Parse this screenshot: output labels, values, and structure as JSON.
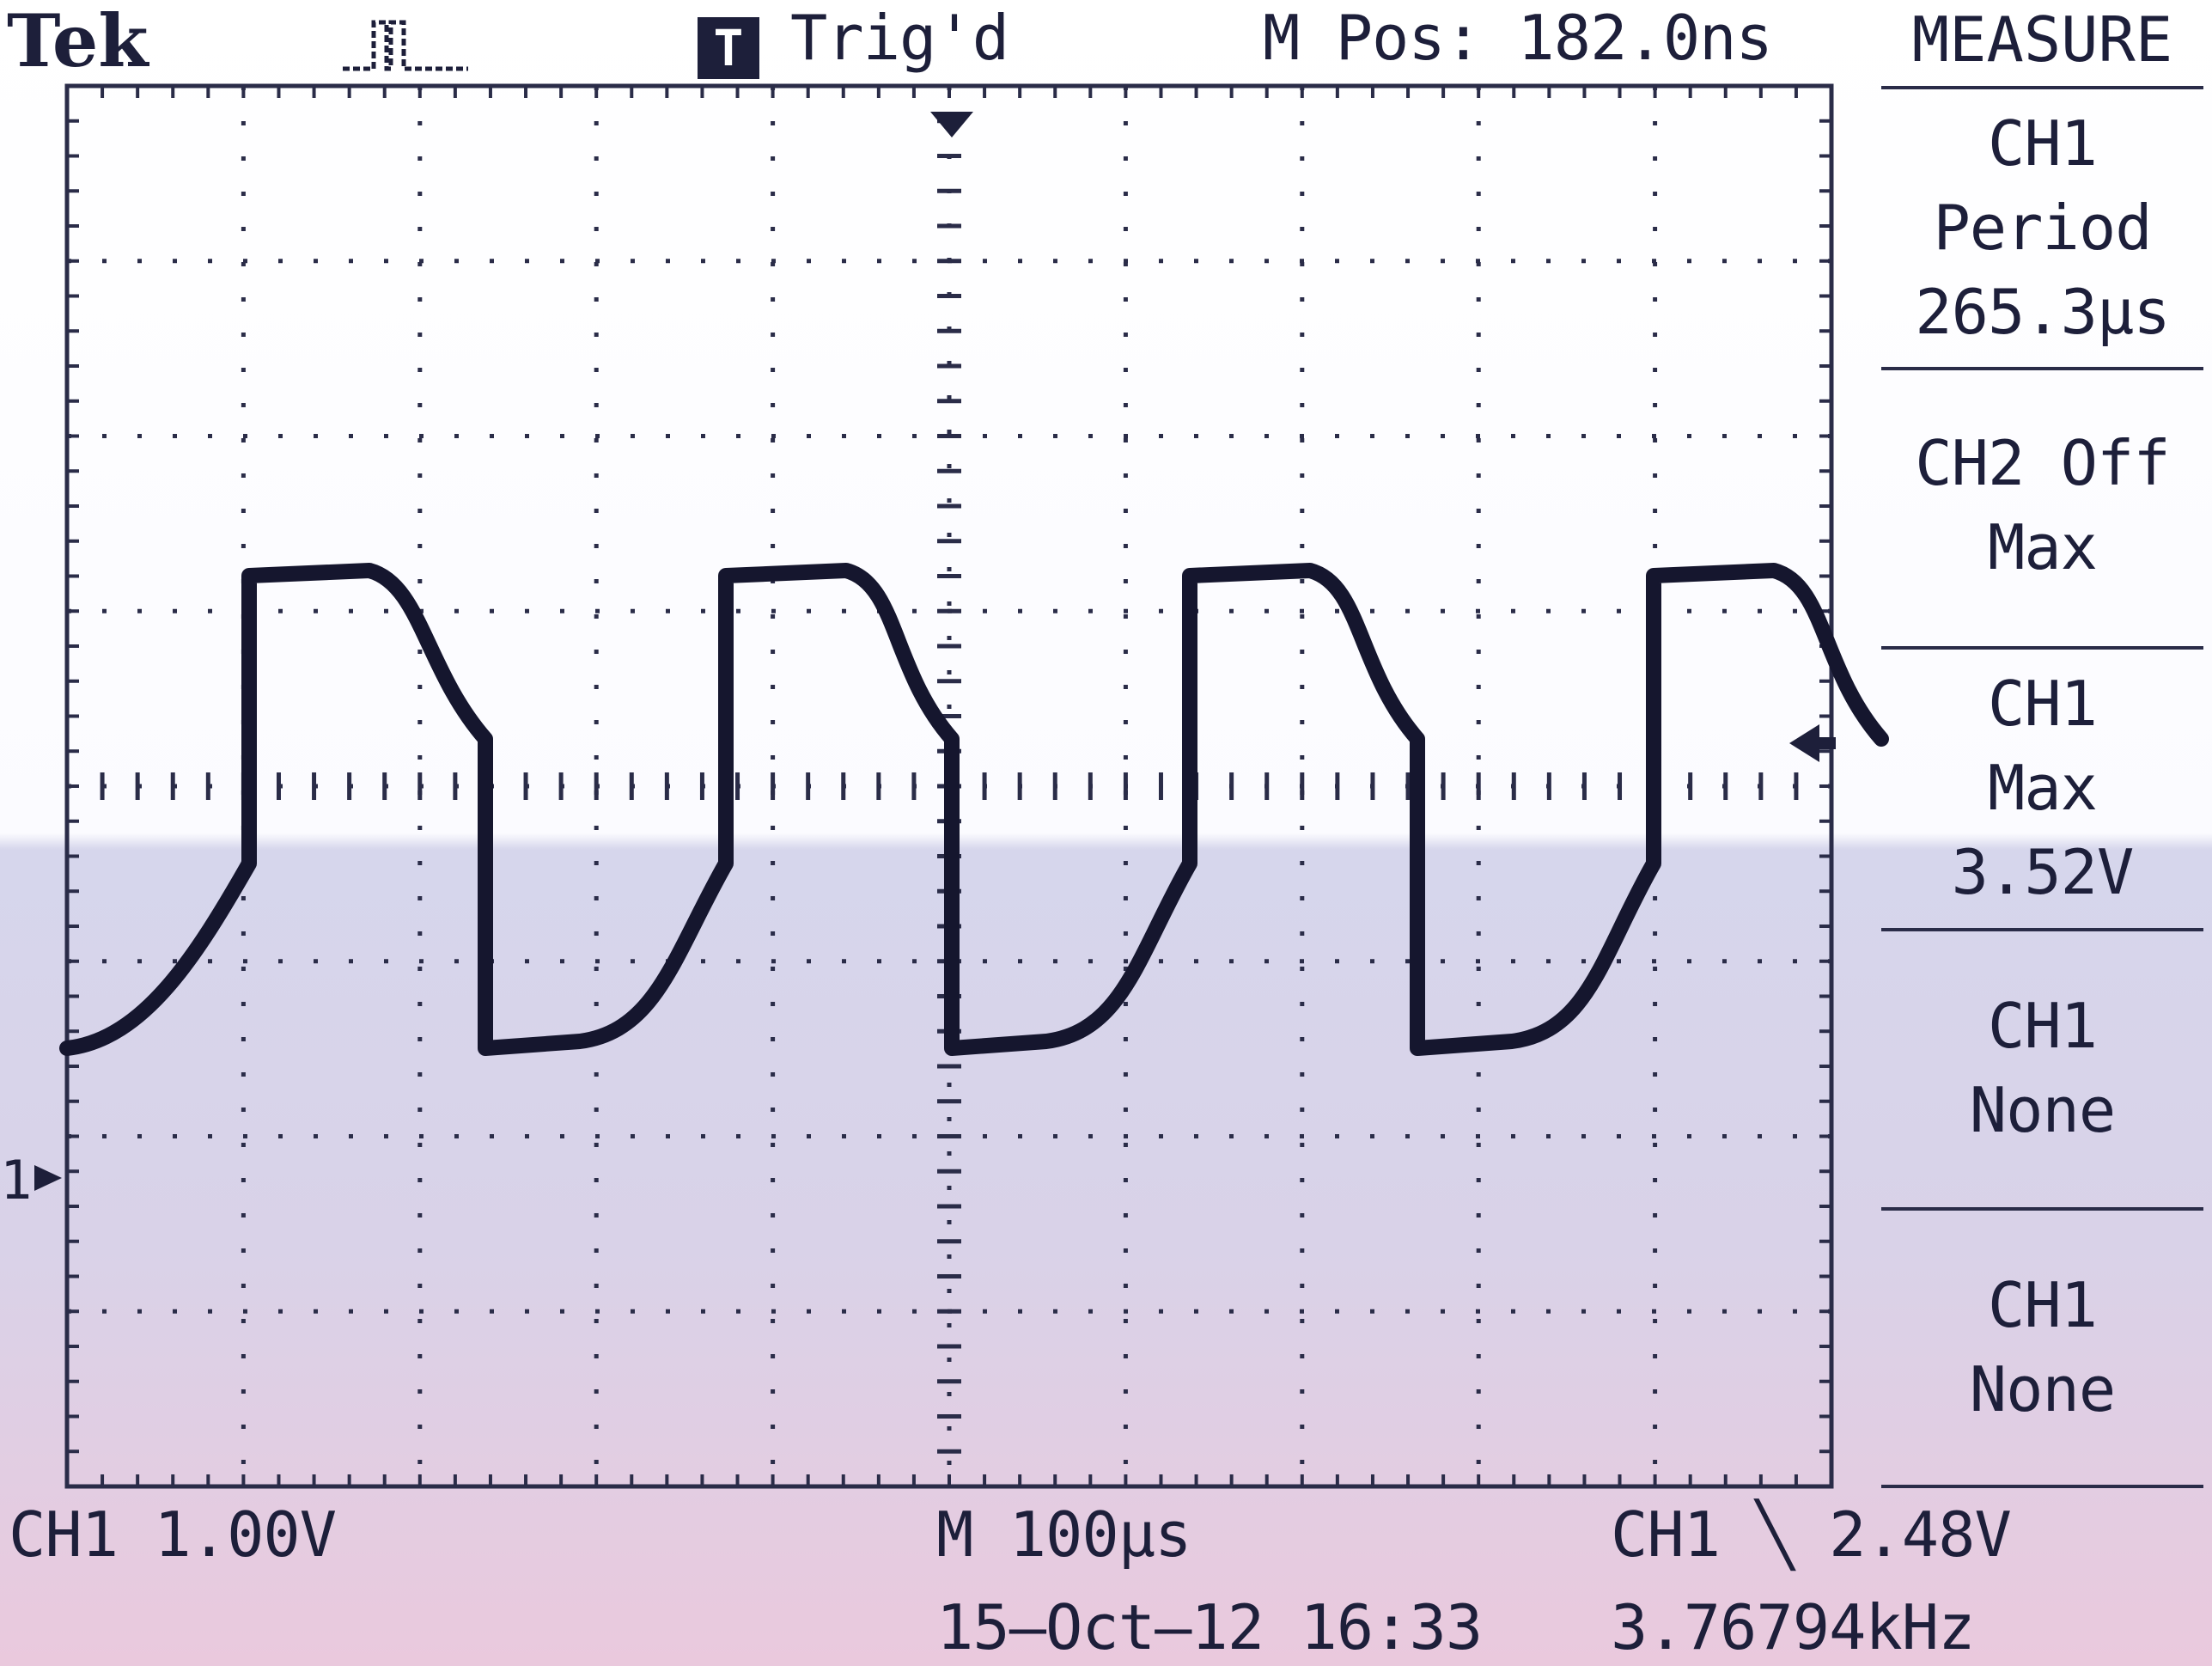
{
  "header": {
    "brand": "Tek",
    "trigger_icon": "T",
    "trigger_status": "Trig'd",
    "position": "M Pos: 182.0ns"
  },
  "menu": {
    "title": "MEASURE",
    "items": [
      {
        "lines": [
          "CH1",
          "Period",
          "265.3µs"
        ]
      },
      {
        "lines": [
          "CH2 Off",
          "Max"
        ]
      },
      {
        "lines": [
          "CH1",
          "Max",
          "3.52V"
        ]
      },
      {
        "lines": [
          "CH1",
          "None"
        ]
      },
      {
        "lines": [
          "CH1",
          "None"
        ]
      }
    ]
  },
  "footer": {
    "ch1_scale": "CH1  1.00V",
    "timebase": "M 100µs",
    "trigger": "CH1 ╲ 2.48V",
    "date": "15–Oct–12 16:33",
    "frequency": "3.76794kHz"
  },
  "markers": {
    "ch1_ground": "1"
  },
  "colors": {
    "trace": "#15162e",
    "grid": "#2a2c48",
    "bg_top": "#ffffff",
    "bg_bottom": "#d6d6ec"
  }
}
